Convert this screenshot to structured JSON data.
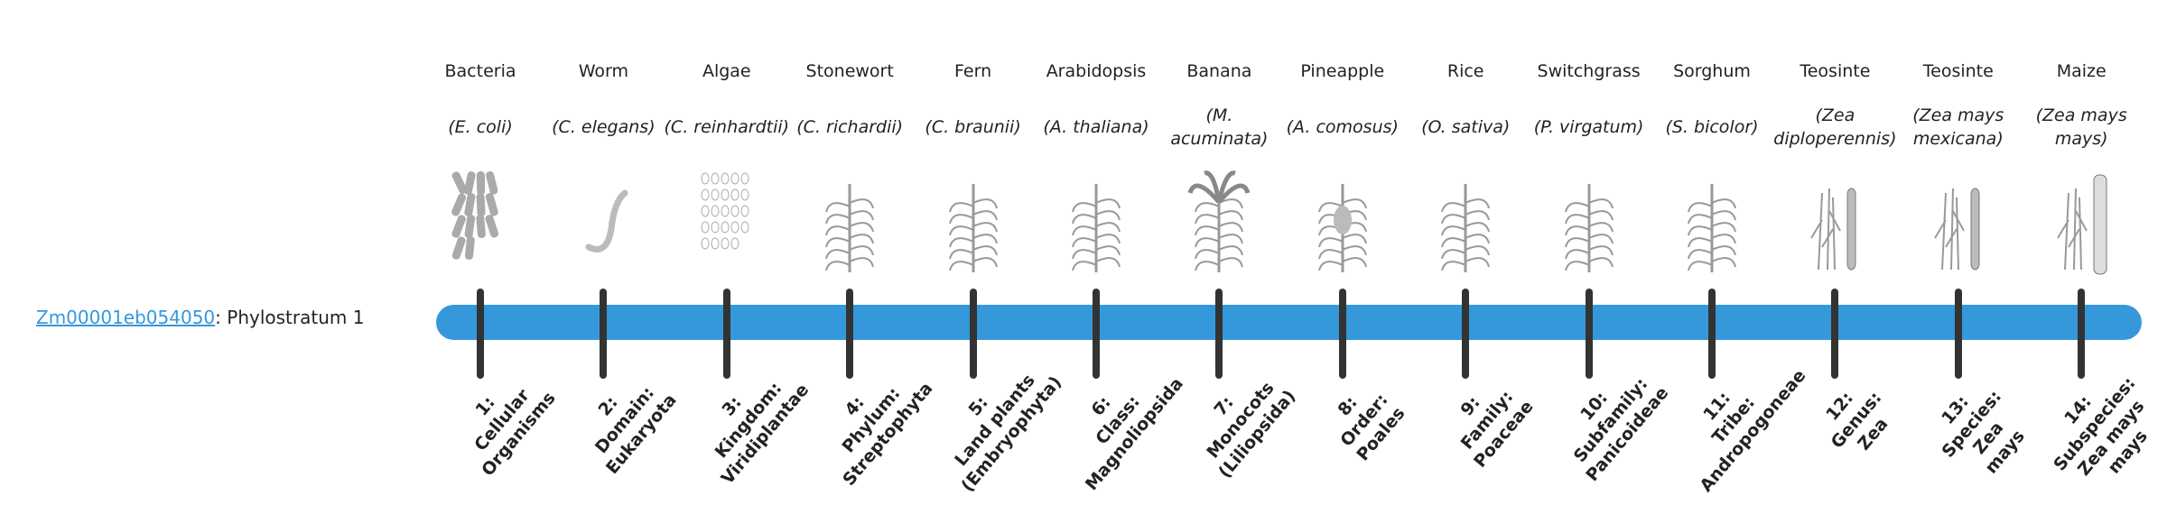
{
  "gene": {
    "id": "Zm00001eb054050",
    "suffix": ": Phylostratum 1"
  },
  "colors": {
    "bar": "#3598db",
    "tick": "#333333",
    "link": "#3598db"
  },
  "organisms": [
    {
      "name": "Bacteria",
      "species": "(E. coli)",
      "icon": "bacteria-image"
    },
    {
      "name": "Worm",
      "species": "(C. elegans)",
      "icon": "worm-image"
    },
    {
      "name": "Algae",
      "species": "(C. reinhardtii)",
      "icon": "algae-image"
    },
    {
      "name": "Stonewort",
      "species": "(C. richardii)",
      "icon": "stonewort-image"
    },
    {
      "name": "Fern",
      "species": "(C. braunii)",
      "icon": "fern-image"
    },
    {
      "name": "Arabidopsis",
      "species": "(A. thaliana)",
      "icon": "arabidopsis-image"
    },
    {
      "name": "Banana",
      "species": "(M. acuminata)",
      "icon": "banana-image"
    },
    {
      "name": "Pineapple",
      "species": "(A. comosus)",
      "icon": "pineapple-image"
    },
    {
      "name": "Rice",
      "species": "(O. sativa)",
      "icon": "rice-image"
    },
    {
      "name": "Switchgrass",
      "species": "(P. virgatum)",
      "icon": "switchgrass-image"
    },
    {
      "name": "Sorghum",
      "species": "(S. bicolor)",
      "icon": "sorghum-image"
    },
    {
      "name": "Teosinte",
      "species": "(Zea diploperennis)",
      "icon": "teosinte-image"
    },
    {
      "name": "Teosinte",
      "species": "(Zea mays mexicana)",
      "icon": "teosinte-image"
    },
    {
      "name": "Maize",
      "species": "(Zea mays mays)",
      "icon": "maize-image"
    }
  ],
  "strata": [
    [
      "1:",
      "Cellular",
      "Organisms"
    ],
    [
      "2:",
      "Domain:",
      "Eukaryota"
    ],
    [
      "3:",
      "Kingdom:",
      "Viridiplantae"
    ],
    [
      "4:",
      "Phylum:",
      "Streptophyta"
    ],
    [
      "5:",
      "Land plants",
      "(Embryophyta)"
    ],
    [
      "6:",
      "Class:",
      "Magnoliopsida"
    ],
    [
      "7:",
      "Monocots",
      "(Liliopsida)"
    ],
    [
      "8:",
      "Order:",
      "Poales"
    ],
    [
      "9:",
      "Family:",
      "Poaceae"
    ],
    [
      "10:",
      "Subfamily:",
      "Panicoideae"
    ],
    [
      "11:",
      "Tribe:",
      "Andropogoneae"
    ],
    [
      "12:",
      "Genus:",
      "Zea"
    ],
    [
      "13:",
      "Species:",
      "Zea",
      "mays"
    ],
    [
      "14:",
      "Subspecies:",
      "Zea mays",
      "mays"
    ]
  ]
}
